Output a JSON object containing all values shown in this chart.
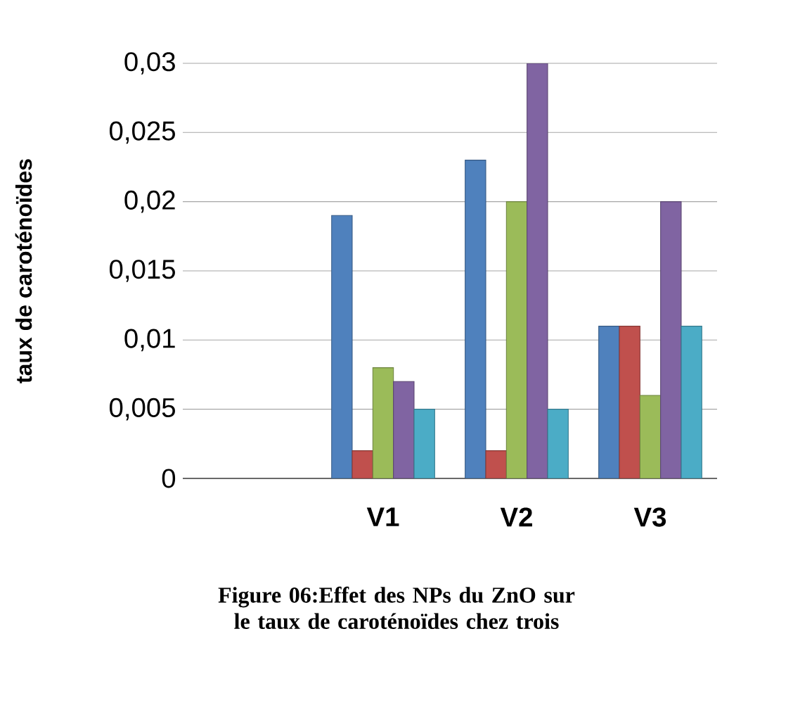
{
  "chart_data": {
    "type": "bar",
    "ylabel": "taux de caroténoïdes",
    "categories": [
      null,
      "V1",
      "V2",
      "V3"
    ],
    "series": [
      {
        "color": "#4f81bd",
        "values": [
          null,
          0.019,
          0.023,
          0.011
        ]
      },
      {
        "color": "#c0504d",
        "values": [
          null,
          0.002,
          0.002,
          0.011
        ]
      },
      {
        "color": "#9bbb59",
        "values": [
          null,
          0.008,
          0.02,
          0.006
        ]
      },
      {
        "color": "#8064a2",
        "values": [
          null,
          0.007,
          0.03,
          0.02
        ]
      },
      {
        "color": "#4bacc6",
        "values": [
          null,
          0.005,
          0.005,
          0.011
        ]
      }
    ],
    "ylim": [
      0,
      0.03
    ],
    "yticks": [
      0,
      {
        "value": 0.005,
        "label": "0,005"
      },
      {
        "value": 0.01,
        "label": "0,01"
      },
      {
        "value": 0.015,
        "label": "0,015"
      },
      {
        "value": 0.02,
        "label": "0,02"
      },
      {
        "value": 0.025,
        "label": "0,025"
      },
      {
        "value": 0.03,
        "label": "0,03"
      }
    ],
    "grid": "y",
    "annotations": [
      "Figure 06:Effet des NPs du ZnO sur le taux de caroténoïdes chez trois"
    ]
  }
}
